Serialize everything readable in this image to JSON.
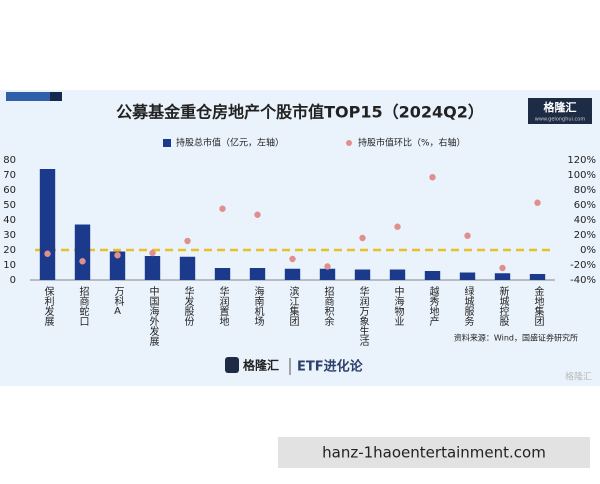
{
  "chart_data": {
    "type": "bar",
    "title": "公募基金重仓房地产个股市值TOP15（2024Q2）",
    "categories": [
      "保利发展",
      "招商蛇口",
      "万科A",
      "中国海外发展",
      "华发股份",
      "华润置地",
      "海南机场",
      "滨江集团",
      "招商积余",
      "华润万象生活",
      "中海物业",
      "越秀地产",
      "绿城服务",
      "新城控股",
      "金地集团"
    ],
    "series": [
      {
        "name": "持股总市值（亿元，左轴）",
        "color": "#1c3a8c",
        "values": [
          74,
          37,
          19,
          16,
          15.5,
          8,
          8,
          7.5,
          7.5,
          7,
          7,
          6,
          5,
          4.5,
          4
        ]
      },
      {
        "name": "持股市值环比（%，右轴）",
        "color": "#e08f8f",
        "axis": "y2",
        "values": [
          -5,
          -15,
          -7,
          -4,
          12,
          55,
          47,
          -12,
          -22,
          16,
          31,
          97,
          19,
          -24,
          63
        ]
      }
    ],
    "ylim": [
      0,
      80
    ],
    "yticks": [
      0,
      10,
      20,
      30,
      40,
      50,
      60,
      70,
      80
    ],
    "y2lim": [
      -40,
      120
    ],
    "y2ticks": [
      {
        "value": -40,
        "label": "-40%"
      },
      {
        "value": -20,
        "label": "-20%"
      },
      {
        "value": 0,
        "label": "0%"
      },
      {
        "value": 20,
        "label": "20%"
      },
      {
        "value": 40,
        "label": "40%"
      },
      {
        "value": 60,
        "label": "60%"
      },
      {
        "value": 80,
        "label": "80%"
      },
      {
        "value": 100,
        "label": "100%"
      },
      {
        "value": 120,
        "label": "120%"
      }
    ],
    "source": "资料来源：Wind，国盛证券研究所"
  },
  "branding": {
    "logo": "格隆汇",
    "site": "www.gelonghui.com",
    "footer_logo": "格隆汇",
    "footer_tag": "ETF进化论",
    "watermark": "格隆汇"
  },
  "url_box": "hanz-1haoentertainment.com"
}
